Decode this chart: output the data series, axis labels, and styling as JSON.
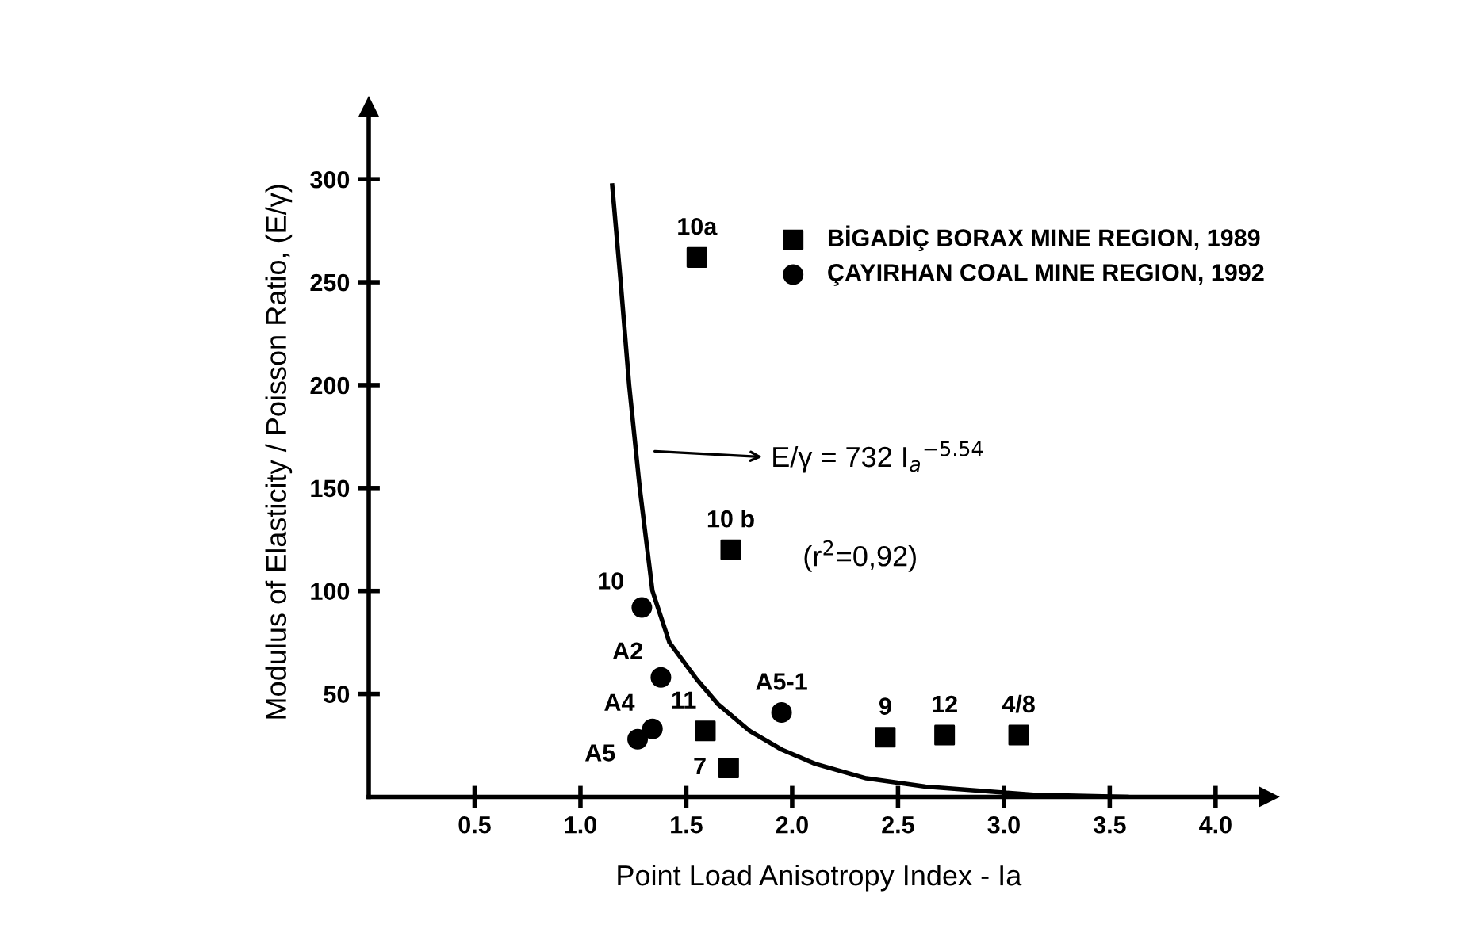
{
  "chart_data": {
    "type": "scatter",
    "xlabel": "Point Load Anisotropy Index - Ia",
    "ylabel": "Modulus of Elasticity / Poisson Ratio, (E/γ)",
    "xlim": [
      0,
      4.25
    ],
    "ylim": [
      0,
      335
    ],
    "xticks": [
      {
        "value": 0.5,
        "label": "0.5"
      },
      {
        "value": 1.0,
        "label": "1.0"
      },
      {
        "value": 1.5,
        "label": "1.5"
      },
      {
        "value": 2.0,
        "label": "2.0"
      },
      {
        "value": 2.5,
        "label": "2.5"
      },
      {
        "value": 3.0,
        "label": "3.0"
      },
      {
        "value": 3.5,
        "label": "3.5"
      },
      {
        "value": 4.0,
        "label": "4.0"
      }
    ],
    "yticks": [
      50,
      100,
      150,
      200,
      250,
      300
    ],
    "grid": false,
    "legend": "top right",
    "series": [
      {
        "name": "BİGADİÇ BORAX MINE REGION, 1989",
        "color": "#000000",
        "marker": "square",
        "x": [
          1.55,
          1.71,
          1.59,
          1.7,
          2.44,
          2.72,
          3.07
        ],
        "values": [
          262,
          120,
          32,
          14,
          29,
          30,
          30
        ]
      },
      {
        "name": "ÇAYIRHAN COAL MINE REGION, 1992",
        "color": "#000000",
        "marker": "circle",
        "x": [
          1.29,
          1.38,
          1.34,
          1.27,
          1.95
        ],
        "values": [
          92,
          58,
          33,
          28,
          41
        ]
      },
      {
        "type": "line",
        "color": "#000000",
        "marker": "none",
        "line_style": "solid",
        "x": [
          1.15,
          1.19,
          1.23,
          1.28,
          1.34,
          1.42,
          1.55,
          1.65,
          1.8,
          1.95,
          2.11,
          2.35,
          2.63,
          3.14,
          3.58
        ],
        "values": [
          297,
          250,
          200,
          150,
          100,
          75,
          57,
          45,
          32,
          23,
          16,
          9,
          5,
          1,
          0
        ]
      }
    ],
    "annotations": [
      {
        "text": "10a",
        "x": 1.55,
        "y": 262
      },
      {
        "text": "10 b",
        "x": 1.71,
        "y": 120
      },
      {
        "text": "11",
        "x": 1.59,
        "y": 32
      },
      {
        "text": "7",
        "x": 1.7,
        "y": 14
      },
      {
        "text": "9",
        "x": 2.44,
        "y": 29
      },
      {
        "text": "12",
        "x": 2.72,
        "y": 30
      },
      {
        "text": "4/8",
        "x": 3.07,
        "y": 30
      },
      {
        "text": "10",
        "x": 1.29,
        "y": 92
      },
      {
        "text": "A2",
        "x": 1.38,
        "y": 58
      },
      {
        "text": "A4",
        "x": 1.34,
        "y": 33
      },
      {
        "text": "A5",
        "x": 1.27,
        "y": 28
      },
      {
        "text": "A5-1",
        "x": 1.95,
        "y": 41
      },
      "E/γ = 732 I$_{a}$$^{−5.54}$",
      "(r$^{2}$=0,92)"
    ]
  }
}
